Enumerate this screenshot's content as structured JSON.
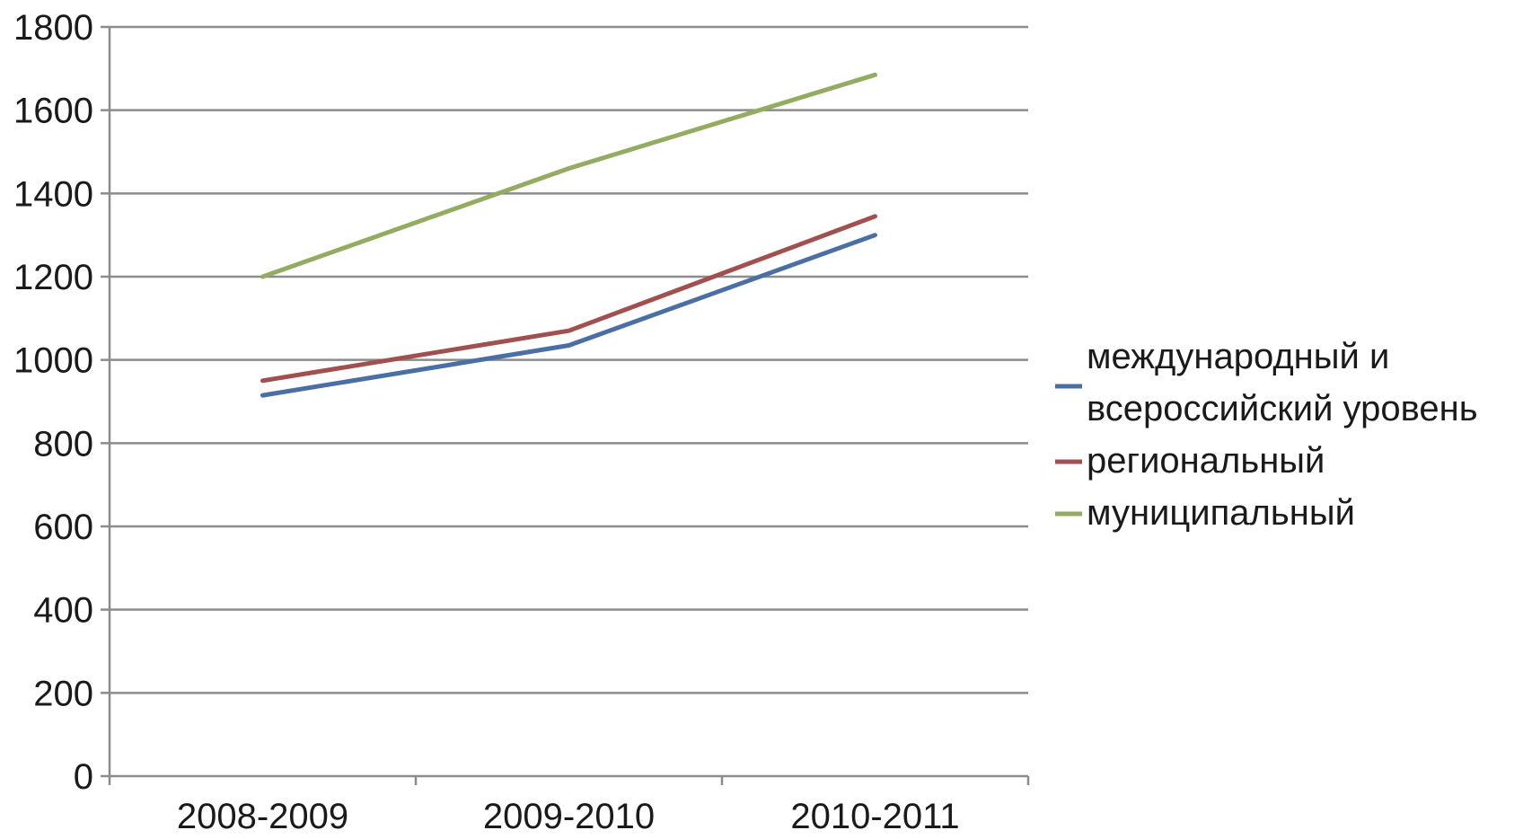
{
  "chart_data": {
    "type": "line",
    "title": "",
    "xlabel": "",
    "ylabel": "",
    "categories": [
      "2008-2009",
      "2009-2010",
      "2010-2011"
    ],
    "ylim": [
      0,
      1800
    ],
    "yticks": [
      0,
      200,
      400,
      600,
      800,
      1000,
      1200,
      1400,
      1600,
      1800
    ],
    "grid": true,
    "legend_position": "right",
    "series": [
      {
        "name": "международный и всероссийский уровень",
        "name_lines": [
          "международный и",
          "всероссийский уровень"
        ],
        "color": "#4a6fa5",
        "values": [
          915,
          1035,
          1300
        ]
      },
      {
        "name": "региональный",
        "name_lines": [
          "региональный"
        ],
        "color": "#a0504e",
        "values": [
          950,
          1070,
          1345
        ]
      },
      {
        "name": "муниципальный",
        "name_lines": [
          "муниципальный"
        ],
        "color": "#94ab62",
        "values": [
          1200,
          1460,
          1685
        ]
      }
    ]
  }
}
